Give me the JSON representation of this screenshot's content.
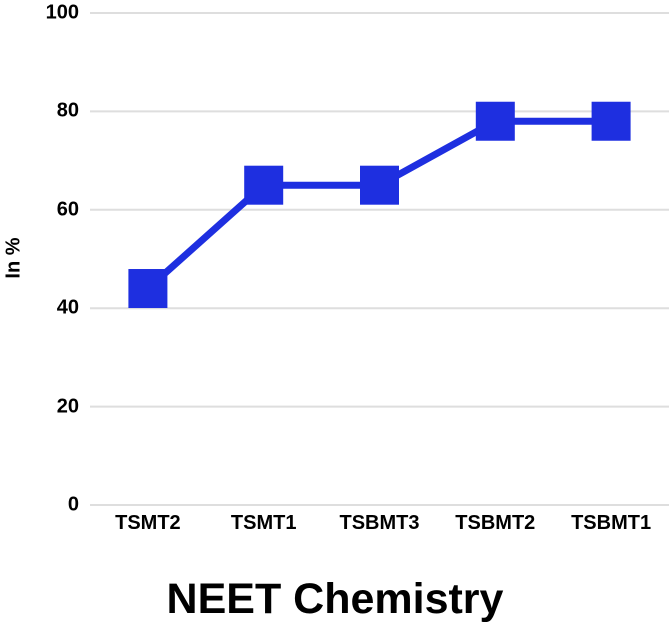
{
  "chart_data": {
    "type": "line",
    "title": "NEET Chemistry",
    "ylabel": "In %",
    "xlabel": "",
    "categories": [
      "TSMT2",
      "TSMT1",
      "TSBMT3",
      "TSBMT2",
      "TSBMT1"
    ],
    "values": [
      44,
      65,
      65,
      78,
      78
    ],
    "ylim": [
      0,
      100
    ],
    "yticks": [
      0,
      20,
      40,
      60,
      80,
      100
    ],
    "grid": true,
    "legend_position": "none",
    "marker": "square",
    "line_color": "#1E2FE0",
    "grid_color": "#DEDEDE",
    "text_color": "#000000",
    "background_color": "#FFFFFF"
  }
}
